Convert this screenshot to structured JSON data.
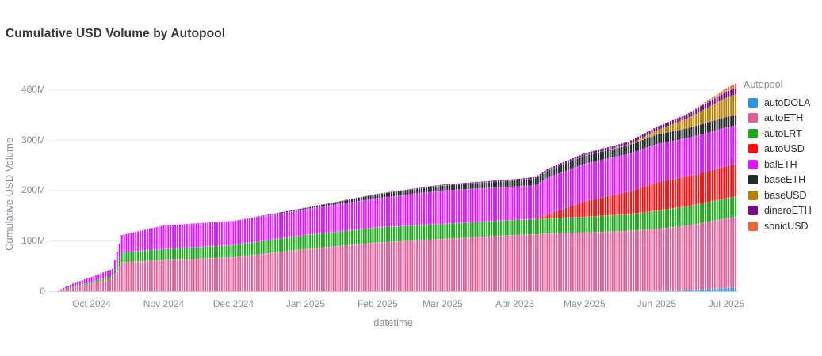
{
  "title": "Cumulative USD Volume by Autopool",
  "legend": {
    "title": "Autopool",
    "items": [
      {
        "label": "autoDOLA",
        "color": "#2E91E5"
      },
      {
        "label": "autoETH",
        "color": "#E15F99"
      },
      {
        "label": "autoLRT",
        "color": "#1CA71C"
      },
      {
        "label": "autoUSD",
        "color": "#FB0D0D"
      },
      {
        "label": "balETH",
        "color": "#DA16FF"
      },
      {
        "label": "baseETH",
        "color": "#222A2A"
      },
      {
        "label": "baseUSD",
        "color": "#B68100"
      },
      {
        "label": "dineroETH",
        "color": "#750D86"
      },
      {
        "label": "sonicUSD",
        "color": "#EB663B"
      }
    ]
  },
  "axes": {
    "x": {
      "title": "datetime",
      "ticks": [
        {
          "label": "Oct 2024",
          "date": "2024-10-01"
        },
        {
          "label": "Nov 2024",
          "date": "2024-11-01"
        },
        {
          "label": "Dec 2024",
          "date": "2024-12-01"
        },
        {
          "label": "Jan 2025",
          "date": "2025-01-01"
        },
        {
          "label": "Feb 2025",
          "date": "2025-02-01"
        },
        {
          "label": "Mar 2025",
          "date": "2025-03-01"
        },
        {
          "label": "Apr 2025",
          "date": "2025-04-01"
        },
        {
          "label": "May 2025",
          "date": "2025-05-01"
        },
        {
          "label": "Jun 2025",
          "date": "2025-06-01"
        },
        {
          "label": "Jul 2025",
          "date": "2025-07-01"
        }
      ]
    },
    "y": {
      "title": "Cumulative USD Volume",
      "ticks": [
        {
          "label": "0",
          "value": 0
        },
        {
          "label": "100M",
          "value": 100
        },
        {
          "label": "200M",
          "value": 200
        },
        {
          "label": "300M",
          "value": 300
        },
        {
          "label": "400M",
          "value": 400
        }
      ]
    }
  },
  "chart_data": {
    "type": "bar",
    "barmode": "stack",
    "bar_unit": "day",
    "x_start": "2024-09-16",
    "x_end": "2025-07-05",
    "value_unit": "millions USD",
    "ylim": [
      0,
      420
    ],
    "grid": true,
    "legend_position": "right",
    "note": "Daily stacked bars of cumulative USD volume; per-series values (in $M) read at keyframe dates, linearly interpolated per day between keyframes. Stacking order bottom-to-top is alphabetical.",
    "keyframe_dates": [
      "2024-09-16",
      "2024-09-23",
      "2024-10-01",
      "2024-10-10",
      "2024-10-14",
      "2024-11-01",
      "2024-12-01",
      "2025-01-01",
      "2025-02-01",
      "2025-03-01",
      "2025-04-01",
      "2025-04-10",
      "2025-04-15",
      "2025-05-01",
      "2025-05-20",
      "2025-06-01",
      "2025-06-15",
      "2025-07-01",
      "2025-07-05"
    ],
    "series": [
      {
        "name": "autoDOLA",
        "color": "#2E91E5",
        "values": [
          0,
          0,
          0,
          0,
          0,
          0,
          0,
          0,
          0,
          0,
          0,
          0,
          0,
          0,
          0,
          1,
          3,
          7,
          8
        ]
      },
      {
        "name": "autoETH",
        "color": "#E15F99",
        "values": [
          0.5,
          8,
          16,
          26,
          58,
          62,
          68,
          84,
          97,
          104,
          112,
          113,
          115,
          117,
          120,
          123,
          128,
          138,
          140
        ]
      },
      {
        "name": "autoLRT",
        "color": "#1CA71C",
        "values": [
          0.2,
          2,
          3,
          5,
          20,
          22,
          24,
          28,
          30,
          30,
          30,
          30,
          30,
          31,
          33,
          36,
          38,
          40,
          40
        ]
      },
      {
        "name": "autoUSD",
        "color": "#FB0D0D",
        "values": [
          0,
          0,
          0,
          0,
          0,
          0,
          0,
          0,
          0,
          0,
          0,
          1,
          8,
          31,
          45,
          57,
          60,
          64,
          65
        ]
      },
      {
        "name": "balETH",
        "color": "#DA16FF",
        "values": [
          0.3,
          6,
          10,
          14,
          34,
          47,
          48,
          51,
          58,
          66,
          66,
          67,
          72,
          74,
          74.5,
          75,
          75.5,
          76,
          76
        ]
      },
      {
        "name": "baseETH",
        "color": "#222A2A",
        "values": [
          0,
          0,
          0,
          0,
          0,
          0,
          0,
          3,
          8,
          10,
          12,
          13,
          14,
          16,
          17.5,
          19,
          20,
          21,
          21
        ]
      },
      {
        "name": "baseUSD",
        "color": "#B68100",
        "values": [
          0,
          0,
          0,
          0,
          0,
          0,
          0,
          0,
          0,
          0,
          0,
          0,
          0,
          0,
          1,
          8,
          20,
          38,
          40
        ]
      },
      {
        "name": "dineroETH",
        "color": "#750D86",
        "values": [
          0,
          0,
          0,
          0,
          0,
          0,
          0,
          0,
          1,
          2,
          3,
          3,
          4,
          5,
          6,
          7,
          9,
          12,
          13
        ]
      },
      {
        "name": "sonicUSD",
        "color": "#EB663B",
        "values": [
          0,
          0,
          0,
          0,
          0,
          0,
          0,
          0,
          0,
          0,
          0,
          0,
          0,
          0,
          0,
          0,
          0.5,
          7,
          9
        ]
      }
    ]
  },
  "colors": {
    "grid": "#e9ecf3",
    "zero_line": "#dde1e9",
    "tick_text": "#8a8f99",
    "title_text": "#32363d"
  }
}
